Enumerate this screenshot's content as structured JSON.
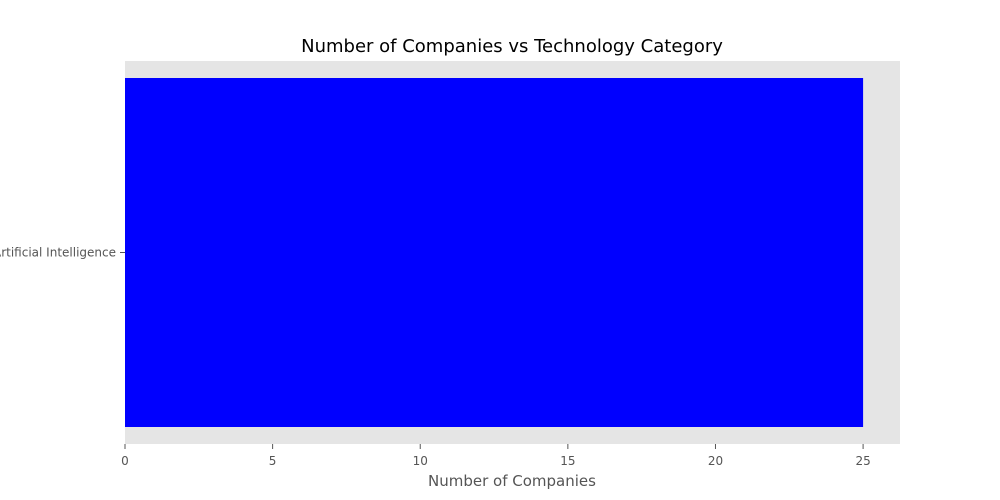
{
  "chart_data": {
    "type": "bar",
    "orientation": "horizontal",
    "title": "Number of Companies vs Technology Category",
    "xlabel": "Number of Companies",
    "ylabel": "",
    "categories": [
      "Artificial Intelligence"
    ],
    "values": [
      25
    ],
    "xlim": [
      0,
      26.25
    ],
    "xticks": [
      0,
      5,
      10,
      15,
      20,
      25
    ],
    "grid": false,
    "legend": "none",
    "colors": {
      "bar": "#0000ff",
      "plot_background": "#e5e5e5",
      "tick_text": "#555555",
      "title_text": "#000000"
    }
  }
}
